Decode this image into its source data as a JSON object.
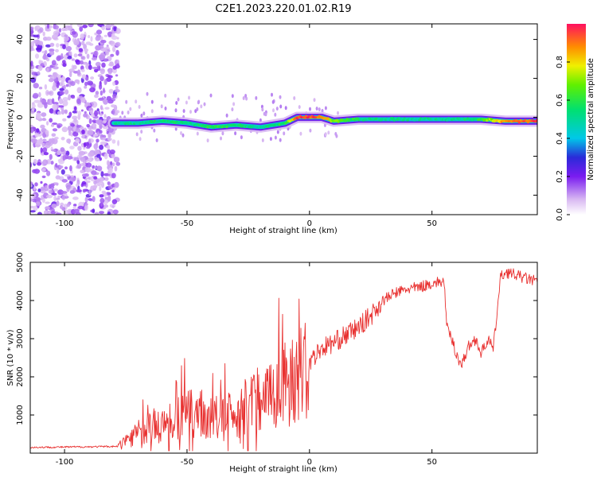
{
  "title": "C2E1.2023.220.01.02.R19",
  "chart_data": [
    {
      "type": "heatmap",
      "xlabel": "Height of straight line (km)",
      "ylabel": "Frequency (Hz)",
      "xlim": [
        -114,
        93
      ],
      "ylim": [
        -50,
        48
      ],
      "xticks": [
        -100,
        -50,
        0,
        50
      ],
      "yticks": [
        -40,
        -20,
        0,
        20,
        40
      ],
      "colorbar": {
        "label": "Normalized spectral amplitude",
        "range": [
          0,
          1
        ],
        "ticks": [
          0,
          0.2,
          0.4,
          0.6,
          0.8
        ]
      },
      "ridge": {
        "x": [
          -80,
          -70,
          -60,
          -50,
          -40,
          -30,
          -20,
          -10,
          -5,
          0,
          5,
          10,
          20,
          30,
          40,
          50,
          60,
          70,
          80,
          93
        ],
        "y": [
          -3,
          -3,
          -2,
          -3,
          -5,
          -4,
          -5,
          -3,
          0,
          0,
          0,
          -2,
          -1,
          -1,
          -1,
          -1,
          -1,
          -1,
          -2,
          -2
        ],
        "amplitude": [
          0.5,
          0.5,
          0.55,
          0.5,
          0.6,
          0.55,
          0.5,
          0.6,
          0.95,
          0.95,
          0.9,
          0.7,
          0.55,
          0.5,
          0.5,
          0.5,
          0.5,
          0.6,
          0.9,
          0.95
        ]
      },
      "noise_region_x": [
        -114,
        -78
      ]
    },
    {
      "type": "line",
      "xlabel": "Height of straight line (km)",
      "ylabel": "SNR (10 * v/v)",
      "xlim": [
        -114,
        93
      ],
      "ylim": [
        0,
        5000
      ],
      "xticks": [
        -100,
        -50,
        0,
        50
      ],
      "yticks": [
        1000,
        2000,
        3000,
        4000,
        5000
      ],
      "series": [
        {
          "color": "#e8302f",
          "x": [
            -114,
            -100,
            -85,
            -78,
            -75,
            -70,
            -65,
            -60,
            -55,
            -50,
            -45,
            -40,
            -35,
            -30,
            -25,
            -20,
            -15,
            -10,
            -5,
            0,
            5,
            10,
            15,
            20,
            25,
            30,
            35,
            40,
            45,
            50,
            55,
            56,
            58,
            60,
            62,
            65,
            68,
            70,
            73,
            75,
            78,
            80,
            85,
            90,
            93
          ],
          "y": [
            150,
            160,
            170,
            180,
            350,
            550,
            650,
            750,
            900,
            1000,
            1050,
            900,
            950,
            1000,
            1300,
            1500,
            1600,
            1800,
            2050,
            2400,
            2750,
            2900,
            3100,
            3300,
            3600,
            4000,
            4200,
            4300,
            4350,
            4450,
            4500,
            3300,
            3000,
            2600,
            2300,
            2800,
            3000,
            2600,
            3000,
            2700,
            4600,
            4750,
            4650,
            4550,
            4500
          ]
        }
      ]
    }
  ]
}
